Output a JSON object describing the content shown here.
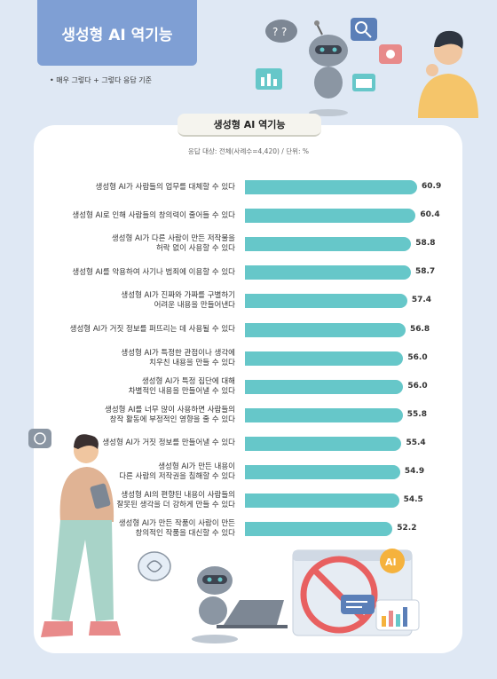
{
  "header": {
    "title": "생성형 AI 역기능",
    "note": "• 매우 그렇다 + 그렇다 응답 기준"
  },
  "chart_tab": "생성형 AI 역기능",
  "chart_meta": "응답 대상: 전체(사례수=4,420) / 단위: %",
  "colors": {
    "bar": "#66c7c9",
    "title_box": "#7f9fd4",
    "background": "#dfe8f4"
  },
  "chart_data": {
    "type": "bar",
    "orientation": "horizontal",
    "title": "생성형 AI 역기능",
    "categories": [
      [
        "생성형 AI가 사람들의 업무를 대체할 수 있다"
      ],
      [
        "생성형 AI로 인해 사람들의 창의력이 줄어들 수 있다"
      ],
      [
        "생성형 AI가 다른 사람이 만든 저작물을",
        "허락 없이 사용할 수 있다"
      ],
      [
        "생성형 AI를 악용하여 사기나 범죄에 이용할 수 있다"
      ],
      [
        "생성형 AI가 진짜와 가짜를 구별하기",
        "어려운 내용을 만들어낸다"
      ],
      [
        "생성형 AI가 거짓 정보를 퍼뜨리는 데 사용될 수 있다"
      ],
      [
        "생성형 AI가 특정한 관점이나 생각에",
        "치우친 내용을 만들 수 있다"
      ],
      [
        "생성형 AI가 특정 집단에 대해",
        "차별적인 내용을 만들어낼 수 있다"
      ],
      [
        "생성형 AI를 너무 많이 사용하면 사람들의",
        "창작 활동에 부정적인 영향을 줄 수 있다"
      ],
      [
        "생성형 AI가 거짓 정보를 만들어낼 수 있다"
      ],
      [
        "생성형 AI가 만든 내용이",
        "다른 사람의 저작권을 침해할 수 있다"
      ],
      [
        "생성형 AI의 편향된 내용이 사람들의",
        "잘못된 생각을 더 강하게 만들 수 있다"
      ],
      [
        "생성형 AI가 만든 작품이 사람이 만든",
        "창의적인 작품을 대신할 수 있다"
      ]
    ],
    "values": [
      60.9,
      60.4,
      58.8,
      58.7,
      57.4,
      56.8,
      56.0,
      56.0,
      55.8,
      55.4,
      54.9,
      54.5,
      52.2
    ],
    "unit": "%",
    "ylim": [
      0,
      100
    ],
    "legend": "none",
    "grid": false
  }
}
